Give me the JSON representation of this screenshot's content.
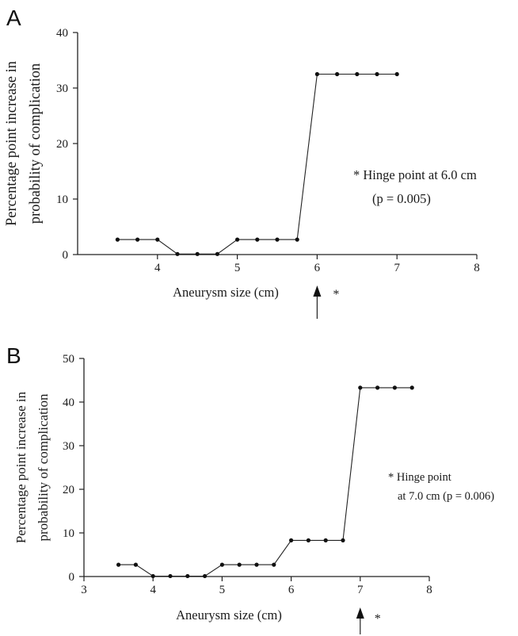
{
  "chart_data": [
    {
      "panel": "A",
      "type": "line",
      "xlabel": "Aneurysm size (cm)",
      "ylabel_lines": [
        "Percentage point increase in",
        "probability of complication"
      ],
      "xlim": [
        3,
        8
      ],
      "ylim": [
        0,
        40
      ],
      "x_ticks": [
        4,
        5,
        6,
        7,
        8
      ],
      "y_ticks": [
        0,
        10,
        20,
        30,
        40
      ],
      "x": [
        3.5,
        3.75,
        4.0,
        4.25,
        4.5,
        4.75,
        5.0,
        5.25,
        5.5,
        5.75,
        6.0,
        6.25,
        6.5,
        6.75,
        7.0
      ],
      "y": [
        2.7,
        2.7,
        2.7,
        0.1,
        0.1,
        0.1,
        2.7,
        2.7,
        2.7,
        2.7,
        32.5,
        32.5,
        32.5,
        32.5,
        32.5
      ],
      "annotation_lines": [
        "* Hinge point at 6.0 cm",
        "(p = 0.005)"
      ],
      "marker_x": 6.0,
      "marker_symbol": "*",
      "grid": false
    },
    {
      "panel": "B",
      "type": "line",
      "xlabel": "Aneurysm size (cm)",
      "ylabel_lines": [
        "Percentage point increase in",
        "probability of complication"
      ],
      "xlim": [
        3,
        8
      ],
      "ylim": [
        0,
        50
      ],
      "x_ticks": [
        3,
        4,
        5,
        6,
        7,
        8
      ],
      "y_ticks": [
        0,
        10,
        20,
        30,
        40,
        50
      ],
      "x": [
        3.5,
        3.75,
        4.0,
        4.25,
        4.5,
        4.75,
        5.0,
        5.25,
        5.5,
        5.75,
        6.0,
        6.25,
        6.5,
        6.75,
        7.0,
        7.25,
        7.5,
        7.75
      ],
      "y": [
        2.7,
        2.7,
        0.1,
        0.1,
        0.1,
        0.1,
        2.7,
        2.7,
        2.7,
        2.7,
        8.3,
        8.3,
        8.3,
        8.3,
        43.3,
        43.3,
        43.3,
        43.3
      ],
      "annotation_lines": [
        "* Hinge point",
        "at 7.0 cm (p = 0.006)"
      ],
      "marker_x": 7.0,
      "marker_symbol": "*",
      "grid": false
    }
  ]
}
